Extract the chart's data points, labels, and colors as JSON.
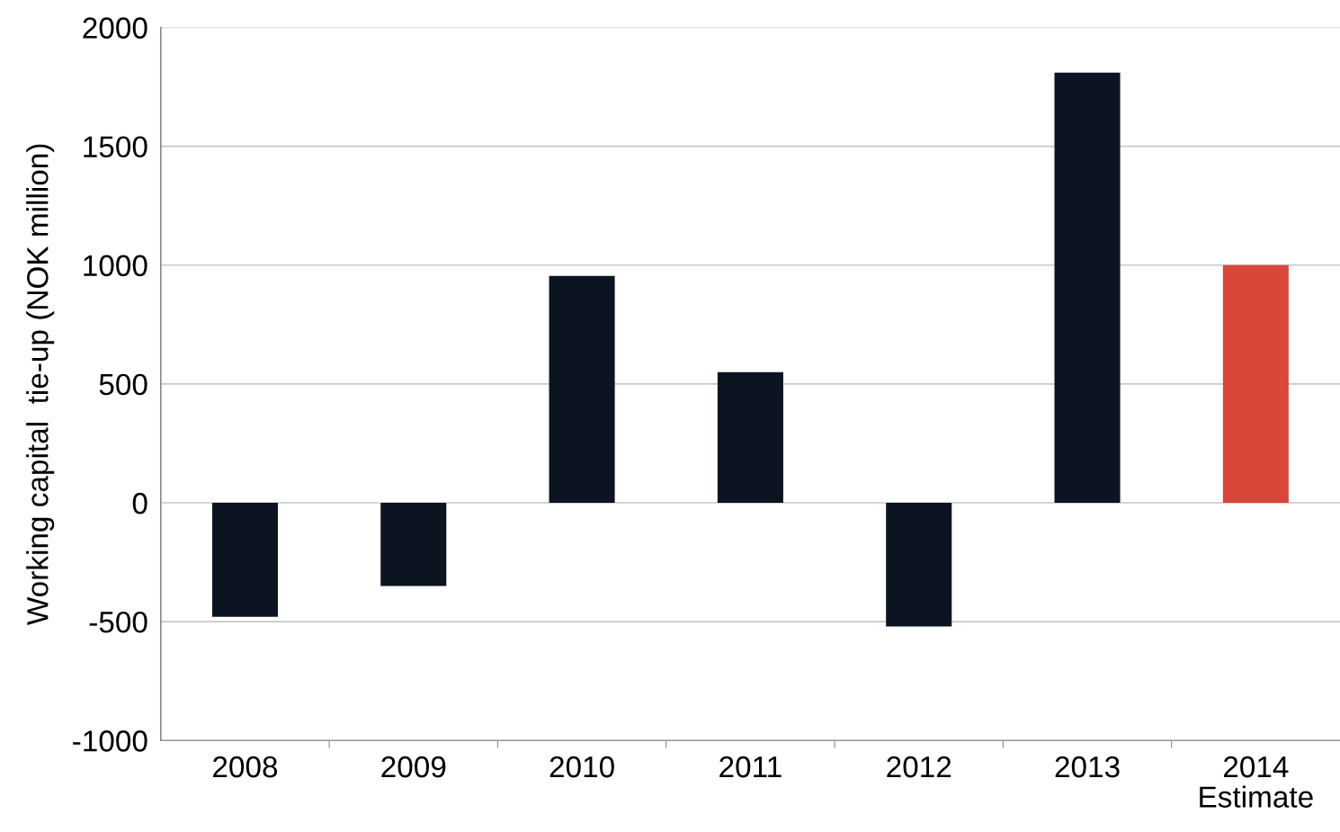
{
  "chart_data": {
    "type": "bar",
    "ylabel": "Working capital  tie-up (NOK million)",
    "categories": [
      "2008",
      "2009",
      "2010",
      "2011",
      "2012",
      "2013",
      "2014\nEstimate"
    ],
    "values": [
      -480,
      -350,
      955,
      550,
      -520,
      1810,
      1000
    ],
    "colors": [
      "#0b1420",
      "#0b1420",
      "#0b1420",
      "#0b1420",
      "#0b1420",
      "#0b1420",
      "#d9463a"
    ],
    "ylim": [
      -1000,
      2000
    ],
    "yticks": [
      -1000,
      -500,
      0,
      500,
      1000,
      1500,
      2000
    ],
    "grid": "y"
  }
}
